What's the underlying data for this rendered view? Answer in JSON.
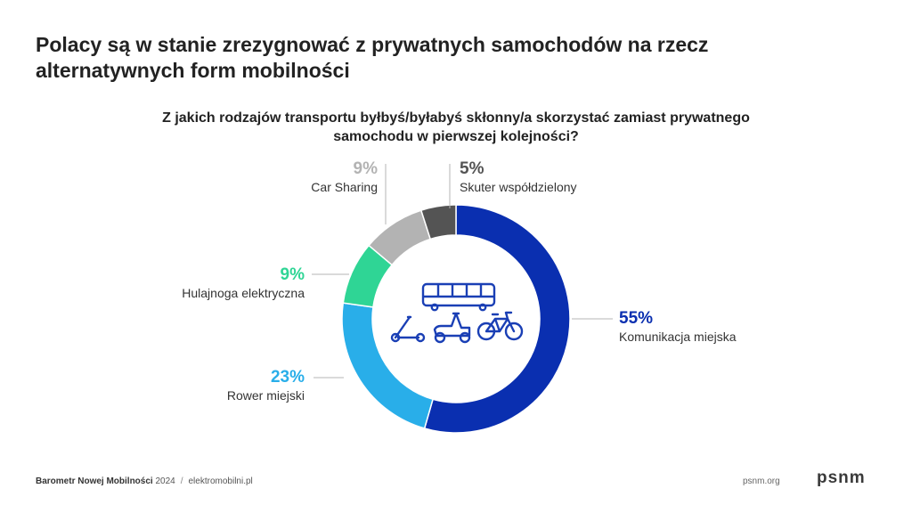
{
  "title": "Polacy są w stanie zrezygnować z prywatnych samochodów na rzecz alternatywnych form mobilności",
  "chart_data": {
    "type": "pie",
    "subtitle": "Z jakich rodzajów transportu byłbyś/byłabyś skłonny/a skorzystać zamiast prywatnego samochodu w pierwszej kolejności?",
    "slices": [
      {
        "label": "Komunikacja miejska",
        "value": 55,
        "value_label": "55%",
        "color": "#0a2fb0"
      },
      {
        "label": "Rower miejski",
        "value": 23,
        "value_label": "23%",
        "color": "#29aee9"
      },
      {
        "label": "Hulajnoga elektryczna",
        "value": 9,
        "value_label": "9%",
        "color": "#2fd595"
      },
      {
        "label": "Car Sharing",
        "value": 9,
        "value_label": "9%",
        "color": "#b3b3b3"
      },
      {
        "label": "Skuter współdzielony",
        "value": 5,
        "value_label": "5%",
        "color": "#545454"
      }
    ]
  },
  "icons": [
    "bus-icon",
    "scooter-icon",
    "moped-icon",
    "bicycle-icon"
  ],
  "footer": {
    "brand": "Barometr Nowej Mobilności",
    "year": "2024",
    "separator": "/",
    "site": "elektromobilni.pl",
    "org_site": "psnm.org",
    "logo": "psnm"
  },
  "colors": {
    "icon": "#1a3fb5",
    "leader": "#b5b5b5"
  }
}
